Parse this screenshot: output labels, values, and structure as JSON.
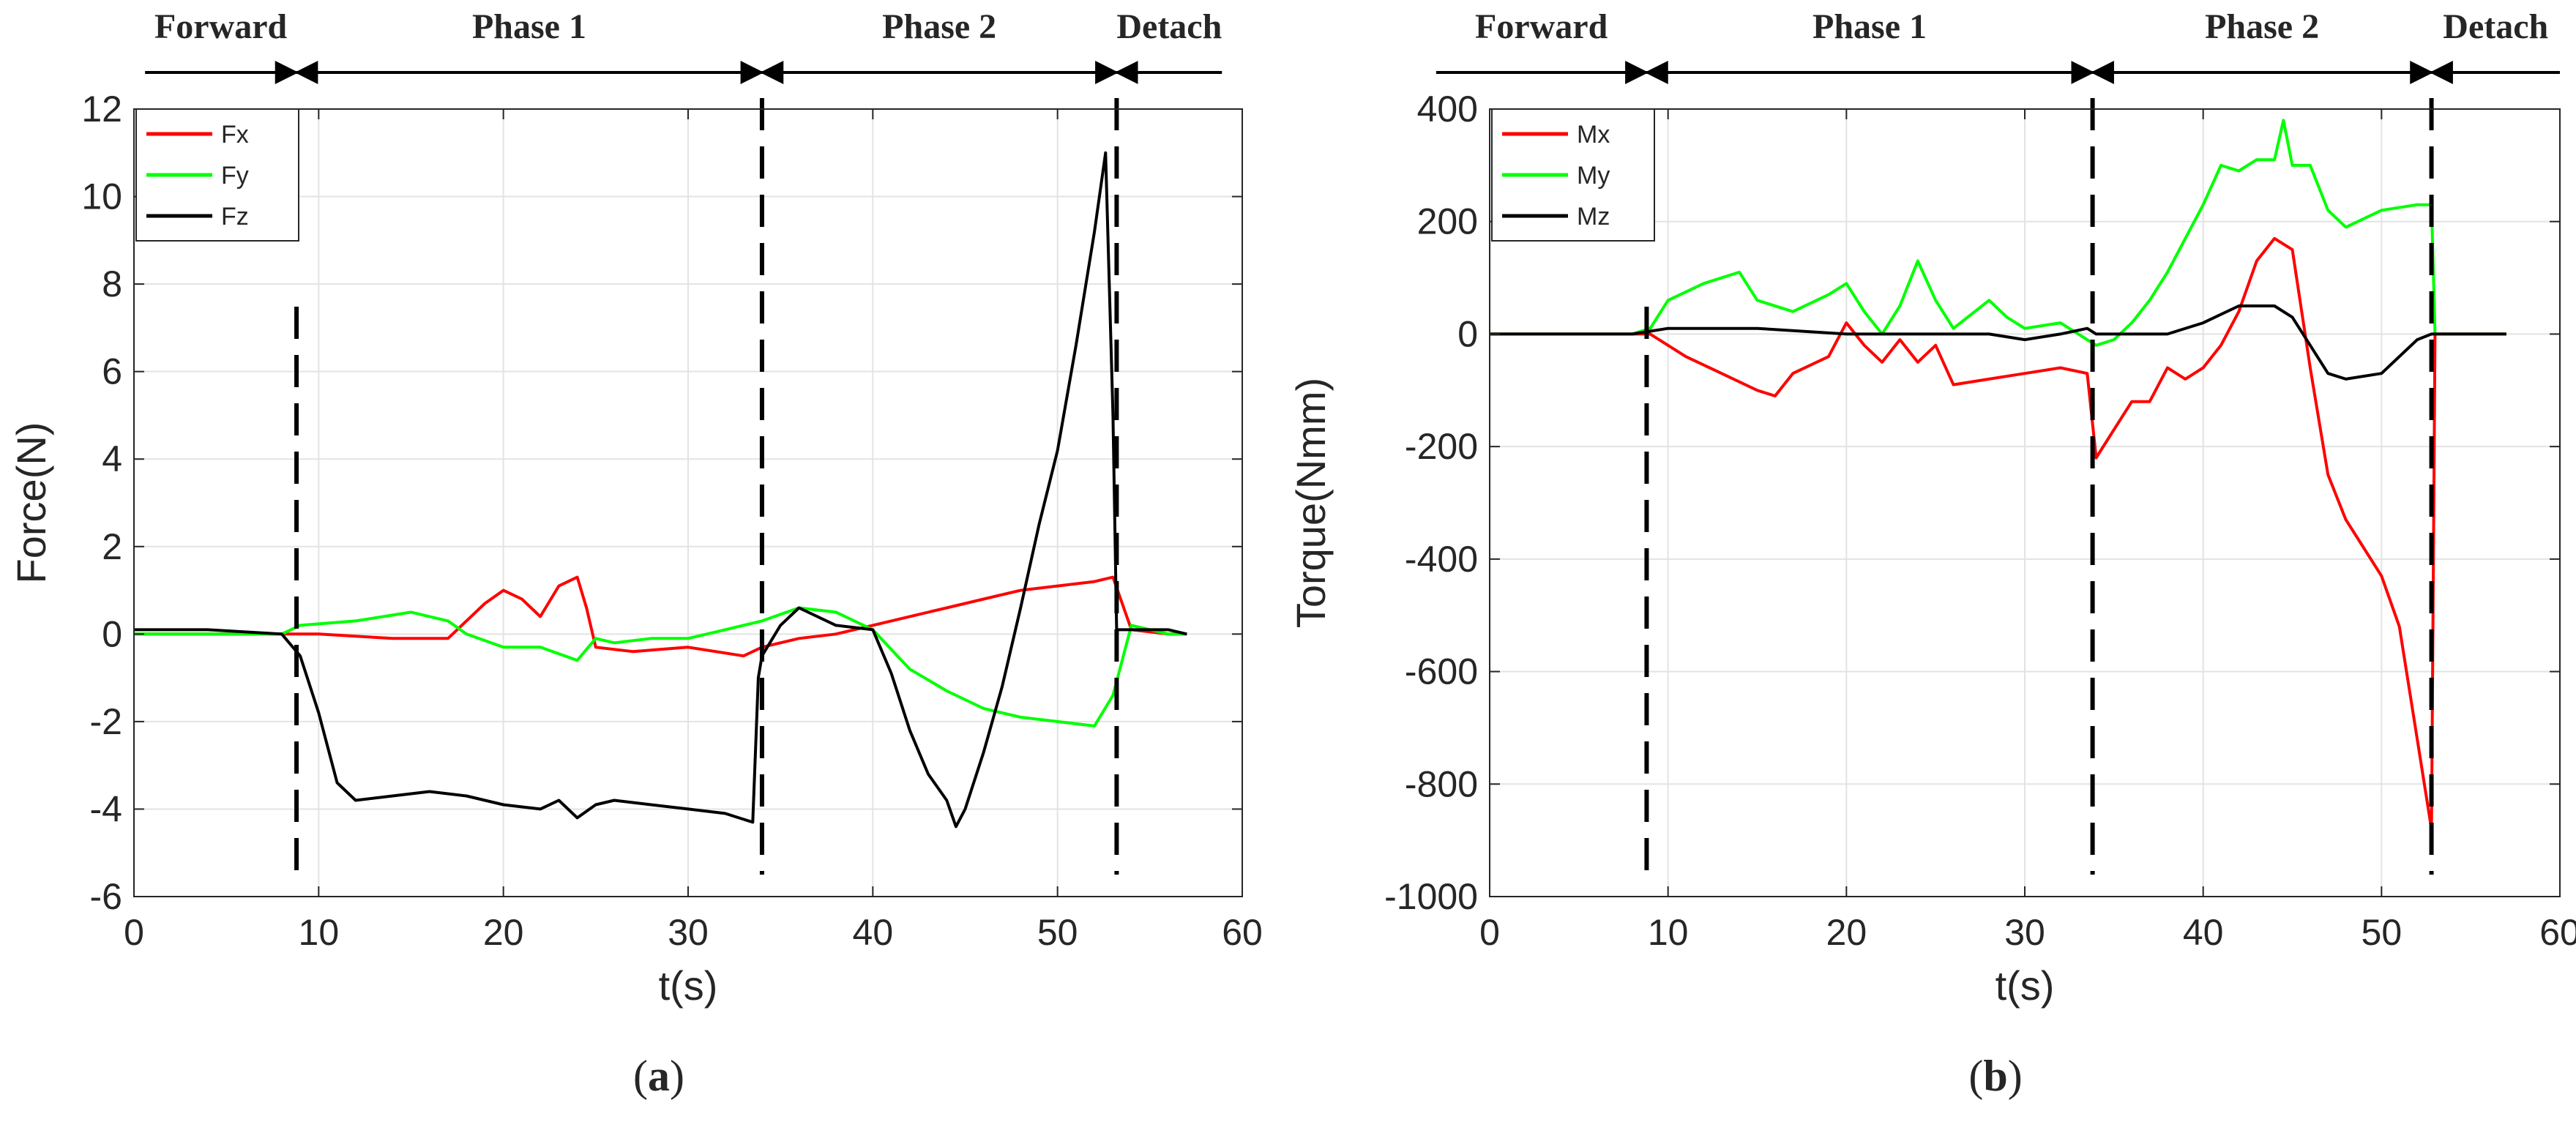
{
  "figure": {
    "panel_labels": [
      "a",
      "b"
    ]
  },
  "phases": {
    "forward": "Forward",
    "phase1": "Phase 1",
    "phase2": "Phase 2",
    "detach": "Detach"
  },
  "chart_data": [
    {
      "type": "line",
      "panel": "a",
      "xlabel": "t(s)",
      "ylabel": "Force(N)",
      "xlim": [
        0,
        60
      ],
      "ylim": [
        -6,
        12
      ],
      "xticks": [
        0,
        10,
        20,
        30,
        40,
        50,
        60
      ],
      "yticks": [
        -6,
        -4,
        -2,
        0,
        2,
        4,
        6,
        8,
        10,
        12
      ],
      "grid": true,
      "legend": "top-left",
      "phase_boundaries": [
        8.8,
        34.0,
        53.2
      ],
      "phase_arrow_ends": [
        0.6,
        58.9
      ],
      "series": [
        {
          "name": "Fx",
          "color": "#ff0000",
          "x": [
            0,
            4,
            8,
            10,
            14,
            17,
            19,
            20,
            21,
            22,
            23,
            24,
            24.5,
            25,
            27,
            30,
            33,
            34,
            36,
            38,
            40,
            42,
            44,
            46,
            48,
            50,
            52,
            53,
            54,
            56,
            57
          ],
          "y": [
            0,
            0,
            0,
            0,
            -0.1,
            -0.1,
            0.7,
            1.0,
            0.8,
            0.4,
            1.1,
            1.3,
            0.6,
            -0.3,
            -0.4,
            -0.3,
            -0.5,
            -0.3,
            -0.1,
            0,
            0.2,
            0.4,
            0.6,
            0.8,
            1.0,
            1.1,
            1.2,
            1.3,
            0.1,
            0,
            0
          ]
        },
        {
          "name": "Fy",
          "color": "#00ff00",
          "x": [
            0,
            4,
            8,
            9,
            12,
            15,
            17,
            18,
            20,
            22,
            24,
            25,
            26,
            28,
            30,
            32,
            34,
            36,
            38,
            40,
            42,
            44,
            46,
            48,
            50,
            52,
            53,
            54,
            56,
            57
          ],
          "y": [
            0,
            0,
            0,
            0.2,
            0.3,
            0.5,
            0.3,
            0,
            -0.3,
            -0.3,
            -0.6,
            -0.1,
            -0.2,
            -0.1,
            -0.1,
            0.1,
            0.3,
            0.6,
            0.5,
            0.1,
            -0.8,
            -1.3,
            -1.7,
            -1.9,
            -2.0,
            -2.1,
            -1.4,
            0.2,
            0,
            0
          ]
        },
        {
          "name": "Fz",
          "color": "#000000",
          "x": [
            0,
            4,
            8,
            9,
            10,
            11,
            12,
            14,
            16,
            18,
            20,
            22,
            23,
            24,
            25,
            26,
            28,
            30,
            32,
            33.5,
            33.8,
            34,
            35,
            36,
            38,
            40,
            41,
            42,
            43,
            44,
            44.5,
            45,
            46,
            47,
            48,
            49,
            50,
            51,
            52,
            52.6,
            53,
            53.2,
            54,
            56,
            57
          ],
          "y": [
            0.1,
            0.1,
            0,
            -0.5,
            -1.8,
            -3.4,
            -3.8,
            -3.7,
            -3.6,
            -3.7,
            -3.9,
            -4.0,
            -3.8,
            -4.2,
            -3.9,
            -3.8,
            -3.9,
            -4.0,
            -4.1,
            -4.3,
            -1.0,
            -0.5,
            0.2,
            0.6,
            0.2,
            0.1,
            -0.9,
            -2.2,
            -3.2,
            -3.8,
            -4.4,
            -4.0,
            -2.7,
            -1.2,
            0.6,
            2.5,
            4.2,
            6.6,
            9.2,
            11.0,
            5.0,
            0.1,
            0.1,
            0.1,
            0
          ]
        }
      ]
    },
    {
      "type": "line",
      "panel": "b",
      "xlabel": "t(s)",
      "ylabel": "Torque(Nmm)",
      "xlim": [
        0,
        60
      ],
      "ylim": [
        -1000,
        400
      ],
      "xticks": [
        0,
        10,
        20,
        30,
        40,
        50,
        60
      ],
      "yticks": [
        -1000,
        -800,
        -600,
        -400,
        -200,
        0,
        200,
        400
      ],
      "grid": true,
      "legend": "top-left",
      "phase_boundaries": [
        8.8,
        33.8,
        52.8
      ],
      "phase_arrow_ends": [
        -3.0,
        60.0
      ],
      "series": [
        {
          "name": "Mx",
          "color": "#ff0000",
          "x": [
            0,
            4,
            8,
            9,
            11,
            13,
            15,
            16,
            17,
            19,
            20,
            21,
            22,
            23,
            24,
            25,
            26,
            28,
            30,
            32,
            33.5,
            34,
            35,
            36,
            37,
            38,
            39,
            40,
            41,
            42,
            43,
            44,
            45,
            46,
            47,
            48,
            49,
            50,
            51,
            52,
            52.8,
            53,
            54,
            56,
            57
          ],
          "y": [
            0,
            0,
            0,
            0,
            -40,
            -70,
            -100,
            -110,
            -70,
            -40,
            20,
            -20,
            -50,
            -10,
            -50,
            -20,
            -90,
            -80,
            -70,
            -60,
            -70,
            -220,
            -170,
            -120,
            -120,
            -60,
            -80,
            -60,
            -20,
            40,
            130,
            170,
            150,
            -60,
            -250,
            -330,
            -380,
            -430,
            -520,
            -720,
            -880,
            0,
            0,
            0,
            0
          ]
        },
        {
          "name": "My",
          "color": "#00ff00",
          "x": [
            0,
            4,
            8,
            9,
            10,
            12,
            14,
            15,
            17,
            19,
            20,
            21,
            22,
            23,
            24,
            25,
            26,
            28,
            29,
            30,
            32,
            33,
            34,
            35,
            36,
            37,
            38,
            40,
            41,
            42,
            43,
            44,
            44.5,
            45,
            46,
            47,
            48,
            50,
            52,
            52.8,
            53,
            54,
            56,
            57
          ],
          "y": [
            0,
            0,
            0,
            10,
            60,
            90,
            110,
            60,
            40,
            70,
            90,
            40,
            0,
            50,
            130,
            60,
            10,
            60,
            30,
            10,
            20,
            0,
            -20,
            -10,
            20,
            60,
            110,
            230,
            300,
            290,
            310,
            310,
            380,
            300,
            300,
            220,
            190,
            220,
            230,
            230,
            0,
            0,
            0,
            0
          ]
        },
        {
          "name": "Mz",
          "color": "#000000",
          "x": [
            0,
            4,
            8,
            10,
            15,
            20,
            25,
            28,
            30,
            32,
            33.5,
            34,
            36,
            38,
            40,
            42,
            44,
            45,
            46,
            47,
            48,
            50,
            52,
            52.8,
            54,
            56,
            57
          ],
          "y": [
            0,
            0,
            0,
            10,
            10,
            0,
            0,
            0,
            -10,
            0,
            10,
            0,
            0,
            0,
            20,
            50,
            50,
            30,
            -20,
            -70,
            -80,
            -70,
            -10,
            0,
            0,
            0,
            0
          ]
        }
      ]
    }
  ]
}
